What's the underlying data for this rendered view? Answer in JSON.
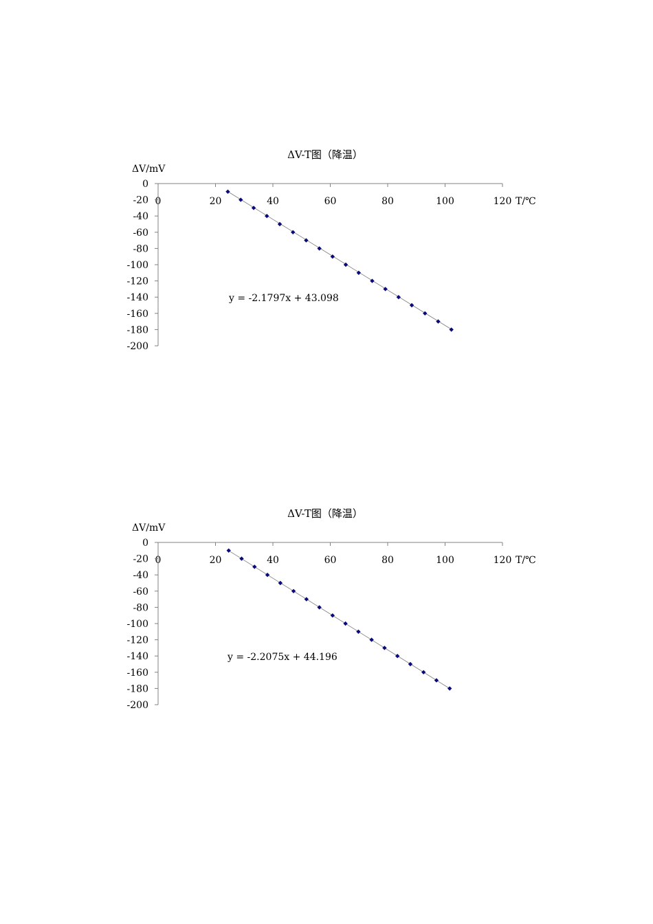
{
  "chart_data": [
    {
      "type": "scatter",
      "title": "ΔV-T图（降温）",
      "xlabel": "T/℃",
      "ylabel": "ΔV/mV",
      "xlim": [
        0,
        120
      ],
      "ylim": [
        -200,
        0
      ],
      "x_ticks": [
        "0",
        "20",
        "40",
        "60",
        "80",
        "100",
        "120"
      ],
      "y_ticks": [
        "0",
        "-20",
        "-40",
        "-60",
        "-80",
        "-100",
        "-120",
        "-140",
        "-160",
        "-180",
        "-200"
      ],
      "grid": false,
      "legend": "none",
      "marker_color": "#0a0a7a",
      "trendline": {
        "slope": -2.1797,
        "intercept": 43.098,
        "equation": "y = -2.1797x + 43.098"
      },
      "series": [
        {
          "x": [
            24.3,
            28.8,
            33.3,
            37.9,
            42.4,
            47.0,
            51.6,
            56.2,
            60.8,
            65.4,
            69.9,
            74.6,
            79.2,
            83.8,
            88.4,
            93.0,
            97.6,
            102.2
          ],
          "y": [
            -10,
            -20,
            -30,
            -40,
            -50,
            -60,
            -70,
            -80,
            -90,
            -100,
            -110,
            -120,
            -130,
            -140,
            -150,
            -160,
            -170,
            -180
          ]
        }
      ]
    },
    {
      "type": "scatter",
      "title": "ΔV-T图（降温）",
      "xlabel": "T/℃",
      "ylabel": "ΔV/mV",
      "xlim": [
        0,
        120
      ],
      "ylim": [
        -200,
        0
      ],
      "x_ticks": [
        "0",
        "20",
        "40",
        "60",
        "80",
        "100",
        "120"
      ],
      "y_ticks": [
        "0",
        "-20",
        "-40",
        "-60",
        "-80",
        "-100",
        "-120",
        "-140",
        "-160",
        "-180",
        "-200"
      ],
      "grid": false,
      "legend": "none",
      "marker_color": "#0a0a7a",
      "trendline": {
        "slope": -2.2075,
        "intercept": 44.196,
        "equation": "y = -2.2075x + 44.196"
      },
      "series": [
        {
          "x": [
            24.6,
            29.1,
            33.6,
            38.1,
            42.6,
            47.2,
            51.7,
            56.2,
            60.8,
            65.3,
            69.8,
            74.4,
            78.9,
            83.4,
            87.9,
            92.5,
            97.0,
            101.6
          ],
          "y": [
            -10,
            -20,
            -30,
            -40,
            -50,
            -60,
            -70,
            -80,
            -90,
            -100,
            -110,
            -120,
            -130,
            -140,
            -150,
            -160,
            -170,
            -180
          ]
        }
      ]
    }
  ]
}
